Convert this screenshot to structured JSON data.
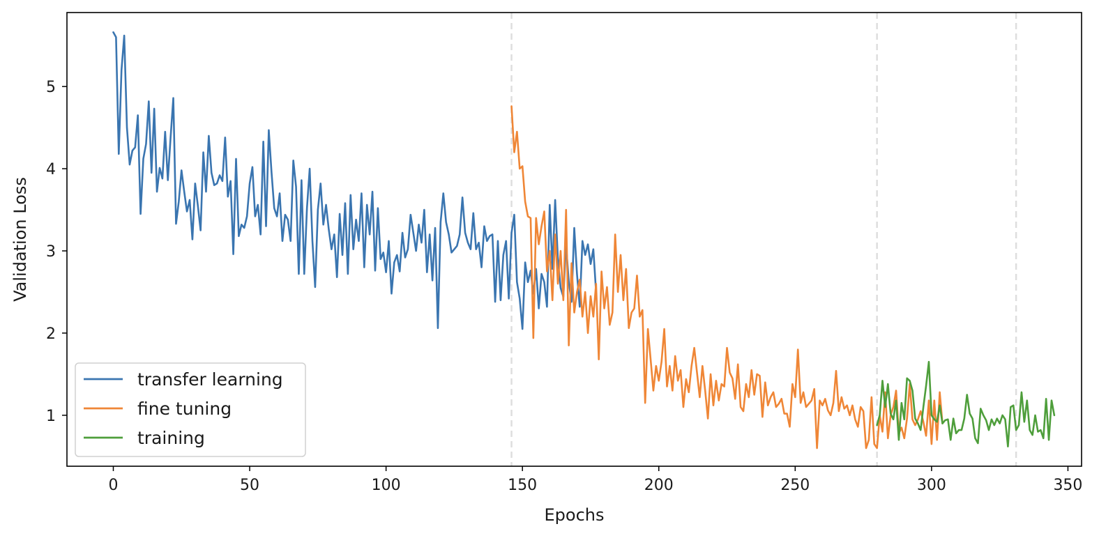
{
  "chart_data": {
    "type": "line",
    "title": "",
    "xlabel": "Epochs",
    "ylabel": "Validation Loss",
    "xlim": [
      -17,
      355
    ],
    "ylim": [
      0.38,
      5.9
    ],
    "xticks": [
      0,
      50,
      100,
      150,
      200,
      250,
      300,
      350
    ],
    "yticks": [
      1,
      2,
      3,
      4,
      5
    ],
    "grid": false,
    "legend_position": "lower-left",
    "vlines": {
      "x": [
        146,
        280,
        331
      ],
      "color": "#dddddd",
      "style": "dashed"
    },
    "series": [
      {
        "name": "transfer learning",
        "color": "#3a75b0",
        "x_start": 0,
        "values": [
          5.66,
          5.6,
          4.18,
          5.2,
          5.62,
          4.5,
          4.05,
          4.22,
          4.26,
          4.65,
          3.45,
          4.12,
          4.3,
          4.82,
          3.95,
          4.73,
          3.72,
          4.01,
          3.88,
          4.45,
          3.86,
          4.38,
          4.86,
          3.33,
          3.6,
          3.98,
          3.72,
          3.48,
          3.62,
          3.14,
          3.82,
          3.55,
          3.25,
          4.2,
          3.72,
          4.4,
          3.95,
          3.8,
          3.82,
          3.92,
          3.85,
          4.38,
          3.66,
          3.85,
          2.96,
          4.12,
          3.18,
          3.32,
          3.28,
          3.42,
          3.82,
          4.02,
          3.42,
          3.56,
          3.2,
          4.33,
          3.3,
          4.47,
          3.96,
          3.52,
          3.42,
          3.7,
          3.12,
          3.44,
          3.38,
          3.12,
          4.1,
          3.78,
          2.72,
          3.86,
          2.72,
          3.52,
          4.0,
          3.12,
          2.56,
          3.5,
          3.82,
          3.32,
          3.56,
          3.26,
          3.02,
          3.2,
          2.68,
          3.45,
          2.95,
          3.58,
          2.72,
          3.68,
          3.02,
          3.38,
          3.12,
          3.7,
          2.8,
          3.56,
          3.2,
          3.72,
          2.76,
          3.52,
          2.9,
          2.98,
          2.74,
          3.12,
          2.48,
          2.86,
          2.95,
          2.75,
          3.22,
          2.92,
          3.02,
          3.44,
          3.22,
          3.0,
          3.32,
          3.1,
          3.5,
          2.74,
          3.2,
          2.64,
          3.28,
          2.06,
          3.35,
          3.7,
          3.35,
          3.2,
          2.98,
          3.02,
          3.06,
          3.2,
          3.65,
          3.22,
          3.1,
          3.02,
          3.46,
          3.02,
          3.1,
          2.8,
          3.3,
          3.12,
          3.18,
          3.2,
          2.38,
          3.12,
          2.4,
          2.95,
          3.12,
          2.42,
          3.22,
          3.44,
          2.62,
          2.42,
          2.05,
          2.86,
          2.62,
          2.76,
          2.48,
          2.78,
          2.3,
          2.72,
          2.62,
          2.32,
          3.56,
          2.78,
          3.62,
          2.9,
          2.55,
          2.44,
          3.08,
          2.62,
          2.38,
          3.28,
          2.72,
          2.32,
          3.12,
          2.95,
          3.08,
          2.84,
          3.02,
          2.5
        ]
      },
      {
        "name": "fine tuning",
        "color": "#ef8636",
        "x_start": 146,
        "values": [
          4.76,
          4.2,
          4.45,
          4.0,
          4.03,
          3.6,
          3.42,
          3.4,
          1.94,
          3.4,
          3.08,
          3.3,
          3.48,
          2.75,
          3.0,
          2.4,
          3.2,
          2.6,
          3.0,
          2.4,
          3.5,
          1.85,
          2.85,
          2.25,
          2.5,
          2.65,
          2.2,
          2.5,
          2.0,
          2.45,
          2.2,
          2.6,
          1.68,
          2.75,
          2.3,
          2.56,
          2.1,
          2.25,
          3.2,
          2.5,
          2.95,
          2.4,
          2.78,
          2.06,
          2.25,
          2.3,
          2.7,
          2.2,
          2.28,
          1.15,
          2.05,
          1.68,
          1.3,
          1.6,
          1.42,
          1.65,
          2.05,
          1.35,
          1.6,
          1.3,
          1.72,
          1.42,
          1.55,
          1.1,
          1.44,
          1.28,
          1.6,
          1.82,
          1.52,
          1.22,
          1.6,
          1.3,
          0.96,
          1.5,
          1.12,
          1.42,
          1.18,
          1.38,
          1.35,
          1.82,
          1.52,
          1.45,
          1.2,
          1.62,
          1.1,
          1.05,
          1.38,
          1.22,
          1.55,
          1.25,
          1.5,
          1.48,
          0.98,
          1.4,
          1.12,
          1.22,
          1.28,
          1.1,
          1.14,
          1.2,
          1.02,
          1.02,
          0.86,
          1.38,
          1.22,
          1.8,
          1.15,
          1.28,
          1.1,
          1.14,
          1.18,
          1.32,
          0.6,
          1.18,
          1.12,
          1.2,
          1.06,
          1.0,
          1.15,
          1.54,
          1.05,
          1.22,
          1.08,
          1.12,
          1.0,
          1.12,
          0.95,
          0.86,
          1.1,
          1.05,
          0.6,
          0.7,
          1.22,
          0.65,
          0.6,
          1.0,
          0.8,
          1.28,
          0.72,
          1.0,
          1.1,
          1.3,
          0.78,
          0.85,
          0.72,
          0.96,
          1.38,
          0.95,
          0.88,
          0.95,
          1.05,
          0.92,
          0.75,
          1.18,
          0.65,
          1.18,
          0.7,
          1.28,
          0.9
        ]
      },
      {
        "name": "training",
        "color": "#4e9e3b",
        "x_start": 280,
        "values": [
          0.88,
          1.0,
          1.42,
          1.1,
          1.38,
          1.02,
          0.95,
          1.18,
          0.7,
          1.15,
          0.95,
          1.45,
          1.42,
          1.3,
          0.96,
          0.9,
          0.82,
          1.1,
          1.36,
          1.65,
          1.0,
          0.95,
          0.92,
          1.12,
          0.9,
          0.94,
          0.95,
          0.7,
          0.96,
          0.78,
          0.82,
          0.82,
          0.96,
          1.25,
          1.02,
          0.96,
          0.72,
          0.66,
          1.08,
          1.0,
          0.94,
          0.82,
          0.95,
          0.88,
          0.96,
          0.9,
          1.0,
          0.95,
          0.62,
          1.1,
          1.12,
          0.82,
          0.88,
          1.28,
          0.92,
          1.18,
          0.82,
          0.76,
          1.0,
          0.8,
          0.82,
          0.72,
          1.2,
          0.7,
          1.18,
          1.0
        ]
      }
    ]
  }
}
